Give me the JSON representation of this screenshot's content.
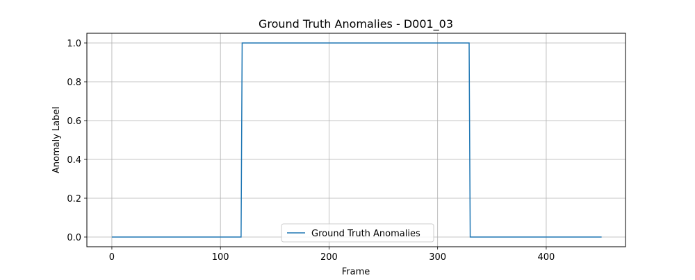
{
  "chart_data": {
    "type": "line",
    "title": "Ground Truth Anomalies - D001_03",
    "xlabel": "Frame",
    "ylabel": "Anomaly Label",
    "xlim": [
      -23,
      473
    ],
    "ylim": [
      -0.05,
      1.05
    ],
    "x_ticks": [
      0,
      100,
      200,
      300,
      400
    ],
    "y_ticks": [
      0.0,
      0.2,
      0.4,
      0.6,
      0.8,
      1.0
    ],
    "y_tick_labels": [
      "0.0",
      "0.2",
      "0.4",
      "0.6",
      "0.8",
      "1.0"
    ],
    "grid": true,
    "legend_position": "lower center",
    "series": [
      {
        "name": "Ground Truth Anomalies",
        "color": "#1f77b4",
        "points": [
          {
            "x": 0,
            "y": 0
          },
          {
            "x": 119,
            "y": 0
          },
          {
            "x": 120,
            "y": 1
          },
          {
            "x": 329,
            "y": 1
          },
          {
            "x": 330,
            "y": 0
          },
          {
            "x": 451,
            "y": 0
          }
        ]
      }
    ]
  }
}
